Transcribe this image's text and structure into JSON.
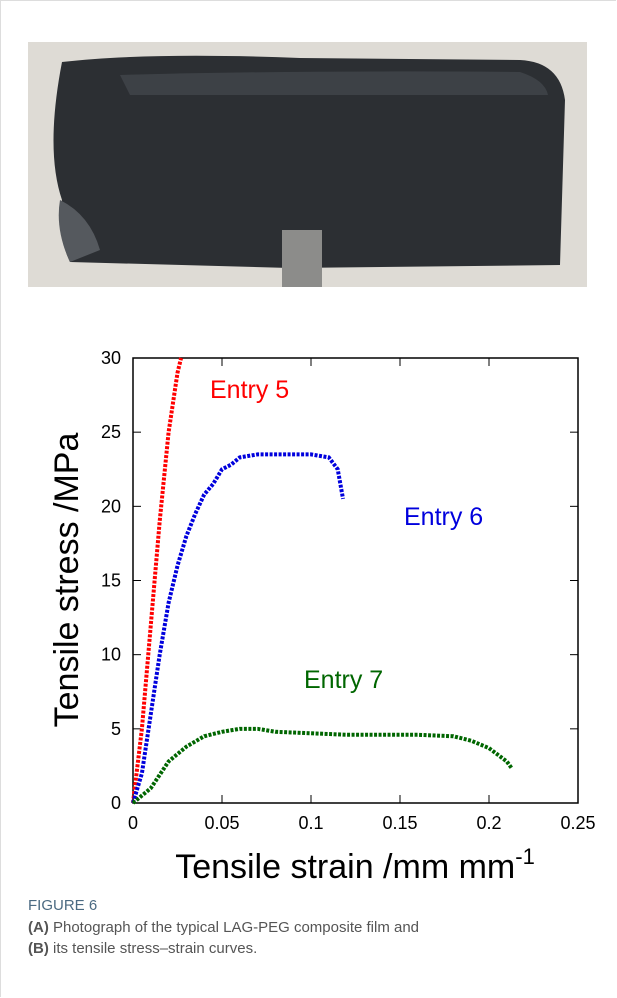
{
  "chart_data": {
    "type": "line",
    "x_label": "Tensile strain /mm mm",
    "x_label_sup": "-1",
    "y_label": "Tensile stress /MPa",
    "xlim": [
      0,
      0.25
    ],
    "xticks": [
      0,
      0.05,
      0.1,
      0.15,
      0.2,
      0.25
    ],
    "ylim": [
      0,
      30
    ],
    "yticks": [
      0,
      5,
      10,
      15,
      20,
      25,
      30
    ],
    "series": [
      {
        "name": "Entry 5",
        "color": "#ff0000",
        "x": [
          0,
          0.005,
          0.01,
          0.015,
          0.02,
          0.025,
          0.027
        ],
        "values": [
          0,
          5,
          12,
          19,
          25,
          29,
          30
        ]
      },
      {
        "name": "Entry 6",
        "color": "#0000dd",
        "x": [
          0,
          0.005,
          0.01,
          0.015,
          0.02,
          0.025,
          0.03,
          0.035,
          0.04,
          0.045,
          0.05,
          0.055,
          0.06,
          0.07,
          0.08,
          0.09,
          0.1,
          0.11,
          0.115,
          0.118
        ],
        "values": [
          0,
          2,
          6,
          10,
          13.5,
          16,
          18,
          19.5,
          20.8,
          21.5,
          22.5,
          22.8,
          23.3,
          23.5,
          23.5,
          23.5,
          23.5,
          23.3,
          22.5,
          20.5
        ]
      },
      {
        "name": "Entry 7",
        "color": "#006600",
        "x": [
          0,
          0.01,
          0.02,
          0.03,
          0.04,
          0.05,
          0.06,
          0.07,
          0.08,
          0.1,
          0.12,
          0.14,
          0.16,
          0.18,
          0.19,
          0.2,
          0.21,
          0.213
        ],
        "values": [
          0,
          1,
          2.8,
          3.8,
          4.5,
          4.8,
          5,
          5,
          4.8,
          4.7,
          4.6,
          4.6,
          4.6,
          4.5,
          4.2,
          3.7,
          2.8,
          2.3
        ]
      }
    ]
  },
  "caption": {
    "label": "FIGURE 6",
    "a_tag": "(A)",
    "a_text": " Photograph of the typical LAG-PEG composite film and",
    "b_tag": "(B)",
    "b_text": " its tensile stress–strain curves."
  }
}
